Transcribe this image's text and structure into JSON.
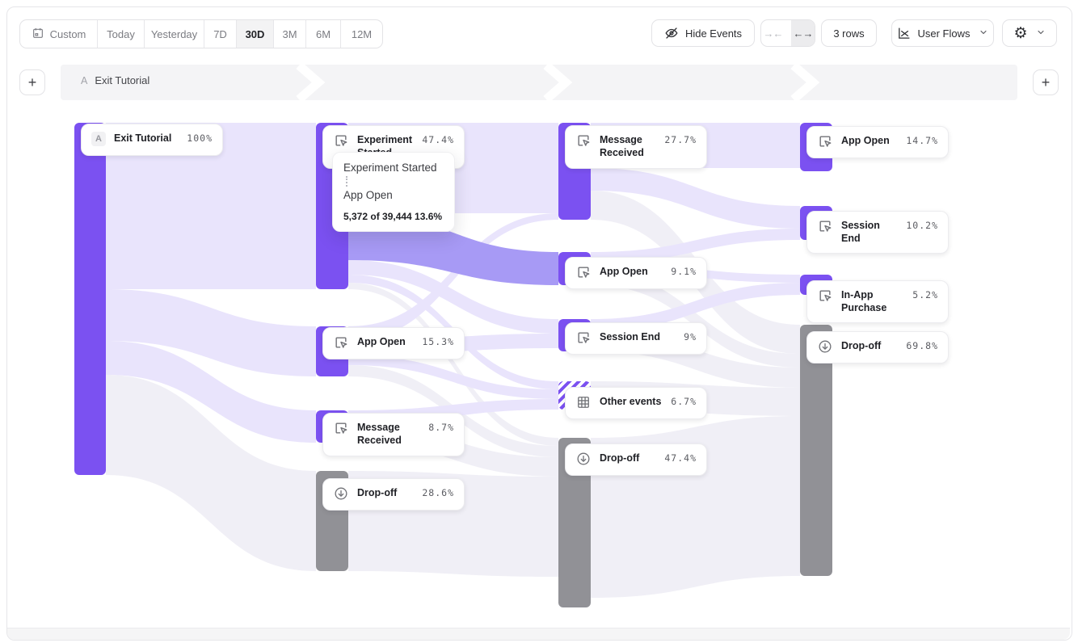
{
  "toolbar": {
    "date_presets": [
      "Custom",
      "Today",
      "Yesterday",
      "7D",
      "30D",
      "3M",
      "6M",
      "12M"
    ],
    "active_preset": "30D",
    "hide_events_label": "Hide Events",
    "rows_label": "3 rows",
    "view_type_label": "User Flows"
  },
  "icons": {
    "collapse_columns": "→←",
    "expand_columns": "←→",
    "gear": "⚙",
    "plus": "+"
  },
  "flow_header": {
    "badge": "A",
    "label": "Exit Tutorial"
  },
  "tooltip": {
    "source": "Experiment Started",
    "target": "App Open",
    "stats": "5,372 of 39,444 13.6%"
  },
  "chart_data": {
    "type": "sankey_user_flow",
    "start_event": {
      "badge": "A",
      "label": "Exit Tutorial",
      "pct": "100%"
    },
    "columns": [
      {
        "step": 1,
        "nodes": [
          {
            "id": "exit-tutorial",
            "label": "Exit Tutorial",
            "pct": "100%",
            "kind": "event",
            "badge": "A"
          }
        ]
      },
      {
        "step": 2,
        "nodes": [
          {
            "id": "experiment-started-c2",
            "label": "Experiment Started",
            "pct": "47.4%",
            "kind": "event"
          },
          {
            "id": "app-open-c2",
            "label": "App Open",
            "pct": "15.3%",
            "kind": "event"
          },
          {
            "id": "message-received-c2",
            "label": "Message Received",
            "pct": "8.7%",
            "kind": "event"
          },
          {
            "id": "drop-off-c2",
            "label": "Drop-off",
            "pct": "28.6%",
            "kind": "dropoff"
          }
        ]
      },
      {
        "step": 3,
        "nodes": [
          {
            "id": "message-received-c3",
            "label": "Message Received",
            "pct": "27.7%",
            "kind": "event"
          },
          {
            "id": "app-open-c3",
            "label": "App Open",
            "pct": "9.1%",
            "kind": "event"
          },
          {
            "id": "session-end-c3",
            "label": "Session End",
            "pct": "9%",
            "kind": "event"
          },
          {
            "id": "other-events-c3",
            "label": "Other events",
            "pct": "6.7%",
            "kind": "other"
          },
          {
            "id": "drop-off-c3",
            "label": "Drop-off",
            "pct": "47.4%",
            "kind": "dropoff"
          }
        ]
      },
      {
        "step": 4,
        "nodes": [
          {
            "id": "app-open-c4",
            "label": "App Open",
            "pct": "14.7%",
            "kind": "event"
          },
          {
            "id": "session-end-c4",
            "label": "Session End",
            "pct": "10.2%",
            "kind": "event"
          },
          {
            "id": "in-app-purchase-c4",
            "label": "In-App Purchase",
            "pct": "5.2%",
            "kind": "event"
          },
          {
            "id": "drop-off-c4",
            "label": "Drop-off",
            "pct": "69.8%",
            "kind": "dropoff"
          }
        ]
      }
    ],
    "highlighted_link": {
      "source": "Experiment Started",
      "target": "App Open",
      "count": "5,372",
      "total": "39,444",
      "pct": "13.6%"
    },
    "colors": {
      "event_bar": "#7b51f1",
      "dropoff_bar": "#919196",
      "link_light": "#e9e4fc",
      "link_faint": "#f0eff6",
      "link_highlight": "#a79af5"
    }
  }
}
